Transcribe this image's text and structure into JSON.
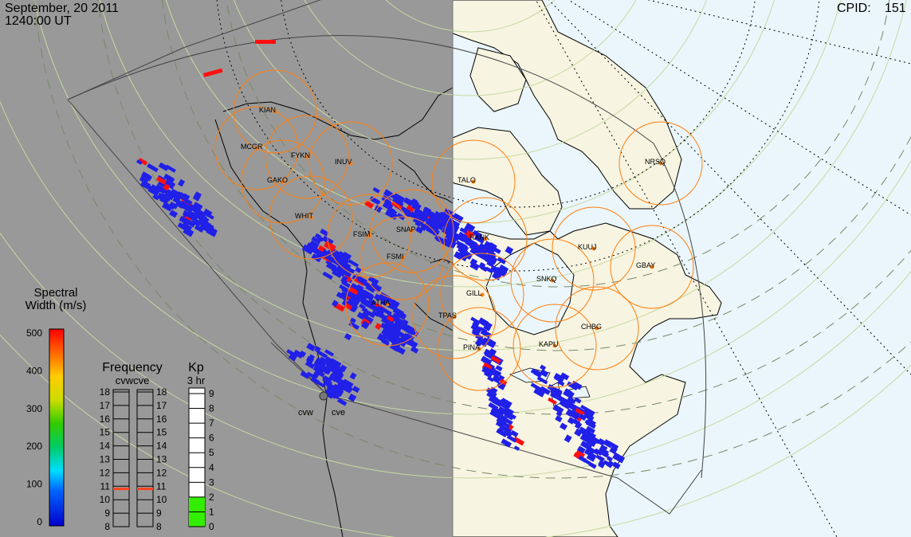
{
  "header": {
    "date": "September, 20 2011",
    "time": "1240:00 UT",
    "cpid_label": "CPID:",
    "cpid_value": "151"
  },
  "stations": [
    {
      "code": "KIAN",
      "kind": "magnetometer"
    },
    {
      "code": "MCGR",
      "kind": "magnetometer"
    },
    {
      "code": "FYKN",
      "kind": "magnetometer"
    },
    {
      "code": "INUV",
      "kind": "magnetometer"
    },
    {
      "code": "GAKO",
      "kind": "magnetometer"
    },
    {
      "code": "WHIT",
      "kind": "magnetometer"
    },
    {
      "code": "FSIM",
      "kind": "magnetometer"
    },
    {
      "code": "SNAP",
      "kind": "magnetometer"
    },
    {
      "code": "FSMI",
      "kind": "magnetometer"
    },
    {
      "code": "ATHA",
      "kind": "magnetometer"
    },
    {
      "code": "TPAS",
      "kind": "magnetometer"
    },
    {
      "code": "PINA",
      "kind": "magnetometer"
    },
    {
      "code": "GILL",
      "kind": "magnetometer"
    },
    {
      "code": "RANK",
      "kind": "magnetometer"
    },
    {
      "code": "TALO",
      "kind": "magnetometer"
    },
    {
      "code": "KUUJ",
      "kind": "magnetometer"
    },
    {
      "code": "SNKQ",
      "kind": "magnetometer"
    },
    {
      "code": "GBAY",
      "kind": "magnetometer"
    },
    {
      "code": "CHBG",
      "kind": "magnetometer"
    },
    {
      "code": "KAPU",
      "kind": "magnetometer"
    },
    {
      "code": "NRSQ",
      "kind": "magnetometer"
    }
  ],
  "radars": [
    {
      "code": "cvw"
    },
    {
      "code": "cve"
    }
  ],
  "legend_width": {
    "title_line1": "Spectral",
    "title_line2": "Width (m/s)",
    "ticks": [
      "500",
      "400",
      "300",
      "200",
      "100",
      "0"
    ],
    "min": 0,
    "max": 500,
    "colors": [
      "#0000cc",
      "#0066ff",
      "#00ddff",
      "#00cc66",
      "#33cc00",
      "#ccdd00",
      "#ffcc00",
      "#ff6600",
      "#ff0000"
    ]
  },
  "legend_frequency": {
    "title": "Frequency",
    "subtitle": "cvwcve",
    "ticks": [
      "18",
      "17",
      "16",
      "15",
      "14",
      "13",
      "12",
      "11",
      "10",
      "9",
      "8"
    ],
    "cvw_value": 10.8,
    "cve_value": 10.8
  },
  "legend_kp": {
    "title": "Kp",
    "subtitle": "3 hr",
    "ticks": [
      "9",
      "8",
      "7",
      "6",
      "5",
      "4",
      "3",
      "2",
      "1",
      "0"
    ],
    "value": 2
  },
  "colors": {
    "night": "#999999",
    "day_ocean": "#eaf6fb",
    "land": "#f7f4e1",
    "fov_circle": "#ff7f0e",
    "station_dot": "#ff7f0e",
    "grid": "#c6d9a0",
    "echo_low": "#2020e8",
    "echo_high": "#ff1010",
    "freq_marker": "#ff4422",
    "kp_fill": "#33ee00"
  }
}
